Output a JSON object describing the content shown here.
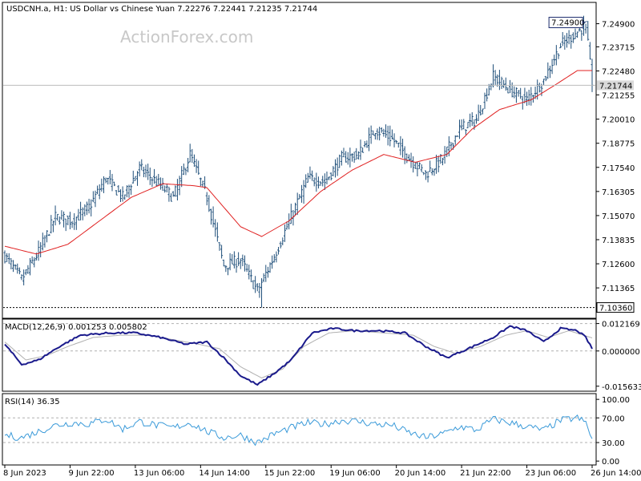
{
  "colors": {
    "bars": "#1f4f7a",
    "ma": "#e02020",
    "macd_main": "#1a1a8c",
    "macd_signal": "#b0b0b0",
    "rsi": "#3a9ad9",
    "frame": "#000000",
    "dotted": "#b0b0b0"
  },
  "chart_data": [
    {
      "type": "bar",
      "style": "ohlc",
      "header": "USDCNH.a, H1:  US Dollar vs Chinese Yuan  7.22276 7.22441 7.21235 7.21744",
      "watermark": "ActionForex.com",
      "ylim": [
        7.0985,
        7.2595
      ],
      "yticks": [
        7.249,
        7.23715,
        7.2248,
        7.21255,
        7.2001,
        7.18775,
        7.1754,
        7.16305,
        7.1507,
        7.13835,
        7.126,
        7.11365
      ],
      "current_price": 7.21744,
      "current_label": "7.21744",
      "high_label": "7.24900",
      "high_value": 7.249,
      "low_label": "7.10360",
      "low_value": 7.1036,
      "ohlc_anchors": [
        [
          0,
          7.13
        ],
        [
          8,
          7.118
        ],
        [
          16,
          7.132
        ],
        [
          24,
          7.15
        ],
        [
          32,
          7.148
        ],
        [
          40,
          7.155
        ],
        [
          48,
          7.17
        ],
        [
          56,
          7.16
        ],
        [
          64,
          7.175
        ],
        [
          72,
          7.168
        ],
        [
          80,
          7.16
        ],
        [
          88,
          7.182
        ],
        [
          96,
          7.16
        ],
        [
          104,
          7.125
        ],
        [
          112,
          7.128
        ],
        [
          120,
          7.112
        ],
        [
          128,
          7.13
        ],
        [
          136,
          7.15
        ],
        [
          144,
          7.17
        ],
        [
          152,
          7.168
        ],
        [
          160,
          7.18
        ],
        [
          168,
          7.182
        ],
        [
          176,
          7.195
        ],
        [
          184,
          7.19
        ],
        [
          192,
          7.18
        ],
        [
          200,
          7.172
        ],
        [
          208,
          7.18
        ],
        [
          216,
          7.195
        ],
        [
          224,
          7.2
        ],
        [
          232,
          7.222
        ],
        [
          240,
          7.215
        ],
        [
          248,
          7.21
        ],
        [
          256,
          7.22
        ],
        [
          264,
          7.238
        ],
        [
          272,
          7.245
        ],
        [
          276,
          7.248
        ],
        [
          278,
          7.228
        ],
        [
          279,
          7.217
        ]
      ],
      "ma_anchors": [
        [
          0,
          7.135
        ],
        [
          15,
          7.131
        ],
        [
          30,
          7.136
        ],
        [
          45,
          7.148
        ],
        [
          60,
          7.16
        ],
        [
          75,
          7.167
        ],
        [
          90,
          7.166
        ],
        [
          96,
          7.165
        ],
        [
          104,
          7.155
        ],
        [
          112,
          7.145
        ],
        [
          122,
          7.14
        ],
        [
          135,
          7.148
        ],
        [
          150,
          7.163
        ],
        [
          165,
          7.174
        ],
        [
          180,
          7.182
        ],
        [
          195,
          7.178
        ],
        [
          210,
          7.182
        ],
        [
          222,
          7.195
        ],
        [
          235,
          7.205
        ],
        [
          250,
          7.21
        ],
        [
          262,
          7.218
        ],
        [
          272,
          7.225
        ],
        [
          279,
          7.225
        ]
      ]
    },
    {
      "type": "line",
      "title": "MACD(12,26,9) 0.001253 0.005802",
      "ylim": [
        -0.0175,
        0.0138
      ],
      "yticks": [
        0.012169,
        0.0,
        -0.015633
      ],
      "ytick_labels": [
        "0.012169",
        "0.000000",
        "-0.015633"
      ],
      "dotted_levels": [
        0.012169,
        0.0
      ],
      "main_anchors": [
        [
          0,
          0.003
        ],
        [
          8,
          -0.006
        ],
        [
          16,
          -0.004
        ],
        [
          26,
          0.002
        ],
        [
          36,
          0.007
        ],
        [
          50,
          0.008
        ],
        [
          62,
          0.008
        ],
        [
          74,
          0.006
        ],
        [
          86,
          0.003
        ],
        [
          96,
          0.004
        ],
        [
          104,
          -0.003
        ],
        [
          112,
          -0.011
        ],
        [
          120,
          -0.015
        ],
        [
          128,
          -0.01
        ],
        [
          136,
          -0.004
        ],
        [
          146,
          0.008
        ],
        [
          156,
          0.01
        ],
        [
          166,
          0.009
        ],
        [
          178,
          0.009
        ],
        [
          190,
          0.008
        ],
        [
          200,
          0.002
        ],
        [
          210,
          -0.003
        ],
        [
          220,
          0.001
        ],
        [
          232,
          0.006
        ],
        [
          240,
          0.011
        ],
        [
          248,
          0.009
        ],
        [
          256,
          0.004
        ],
        [
          264,
          0.01
        ],
        [
          272,
          0.009
        ],
        [
          276,
          0.006
        ],
        [
          279,
          0.001
        ]
      ],
      "signal_anchors": [
        [
          0,
          0.004
        ],
        [
          10,
          -0.004
        ],
        [
          20,
          -0.002
        ],
        [
          30,
          0.002
        ],
        [
          42,
          0.006
        ],
        [
          55,
          0.007
        ],
        [
          68,
          0.007
        ],
        [
          80,
          0.005
        ],
        [
          92,
          0.003
        ],
        [
          102,
          0.001
        ],
        [
          112,
          -0.007
        ],
        [
          122,
          -0.012
        ],
        [
          132,
          -0.008
        ],
        [
          142,
          0.002
        ],
        [
          154,
          0.008
        ],
        [
          166,
          0.009
        ],
        [
          180,
          0.008
        ],
        [
          194,
          0.007
        ],
        [
          204,
          0.002
        ],
        [
          214,
          -0.001
        ],
        [
          226,
          0.002
        ],
        [
          238,
          0.007
        ],
        [
          248,
          0.009
        ],
        [
          258,
          0.006
        ],
        [
          268,
          0.009
        ],
        [
          279,
          0.0058
        ]
      ]
    },
    {
      "type": "line",
      "title": "RSI(14) 36.35",
      "ylim": [
        -5,
        108
      ],
      "yticks": [
        100,
        70,
        30,
        0
      ],
      "ytick_labels": [
        "100.00",
        "70.00",
        "30.00",
        "0.00"
      ],
      "dotted_levels": [
        70,
        30
      ],
      "rsi_anchors": [
        [
          0,
          42
        ],
        [
          8,
          38
        ],
        [
          16,
          48
        ],
        [
          24,
          58
        ],
        [
          32,
          62
        ],
        [
          40,
          60
        ],
        [
          48,
          68
        ],
        [
          56,
          52
        ],
        [
          64,
          64
        ],
        [
          72,
          58
        ],
        [
          80,
          54
        ],
        [
          88,
          62
        ],
        [
          96,
          48
        ],
        [
          104,
          38
        ],
        [
          112,
          42
        ],
        [
          120,
          30
        ],
        [
          128,
          44
        ],
        [
          136,
          54
        ],
        [
          144,
          62
        ],
        [
          152,
          60
        ],
        [
          160,
          66
        ],
        [
          168,
          64
        ],
        [
          176,
          60
        ],
        [
          184,
          58
        ],
        [
          192,
          46
        ],
        [
          200,
          38
        ],
        [
          208,
          44
        ],
        [
          216,
          56
        ],
        [
          224,
          50
        ],
        [
          232,
          68
        ],
        [
          240,
          62
        ],
        [
          248,
          56
        ],
        [
          256,
          50
        ],
        [
          264,
          66
        ],
        [
          272,
          70
        ],
        [
          276,
          62
        ],
        [
          279,
          36.35
        ]
      ]
    }
  ],
  "xaxis": {
    "bars": 280,
    "ticks": [
      {
        "idx": 0,
        "label": "8 Jun 2023"
      },
      {
        "idx": 31,
        "label": "9 Jun 22:00"
      },
      {
        "idx": 62,
        "label": "13 Jun 06:00"
      },
      {
        "idx": 93,
        "label": "14 Jun 14:00"
      },
      {
        "idx": 124,
        "label": "15 Jun 22:00"
      },
      {
        "idx": 155,
        "label": "19 Jun 06:00"
      },
      {
        "idx": 186,
        "label": "20 Jun 14:00"
      },
      {
        "idx": 217,
        "label": "21 Jun 22:00"
      },
      {
        "idx": 248,
        "label": "23 Jun 06:00"
      },
      {
        "idx": 279,
        "label": "26 Jun 14:00"
      }
    ]
  }
}
